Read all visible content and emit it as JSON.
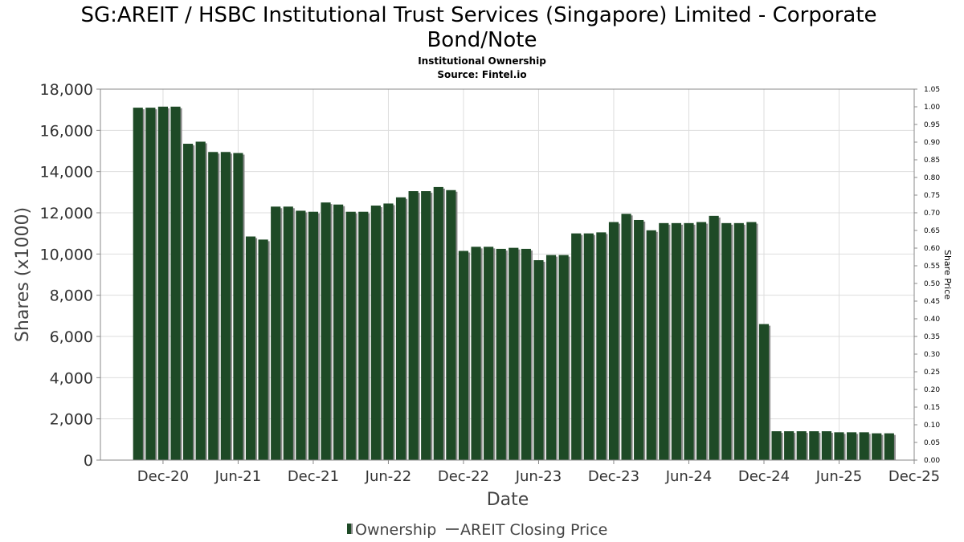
{
  "chart_data": {
    "type": "bar",
    "title": "SG:AREIT / HSBC Institutional Trust Services (Singapore) Limited - Corporate Bond/Note",
    "title_lines": [
      "SG:AREIT / HSBC Institutional Trust Services (Singapore) Limited - Corporate",
      "Bond/Note"
    ],
    "subtitle": "Institutional Ownership",
    "source": "Source: Fintel.io",
    "xlabel": "Date",
    "ylabel": "Shares (x1000)",
    "y2label": "Share Price",
    "ylim": [
      0,
      18000
    ],
    "y2lim": [
      0,
      1.05
    ],
    "yticks": [
      "0",
      "2,000",
      "4,000",
      "6,000",
      "8,000",
      "10,000",
      "12,000",
      "14,000",
      "16,000",
      "18,000"
    ],
    "y2ticks": [
      "0.00",
      "0.05",
      "0.10",
      "0.15",
      "0.20",
      "0.25",
      "0.30",
      "0.35",
      "0.40",
      "0.45",
      "0.50",
      "0.55",
      "0.60",
      "0.65",
      "0.70",
      "0.75",
      "0.80",
      "0.85",
      "0.90",
      "0.95",
      "1.00",
      "1.05"
    ],
    "xticks": [
      "Dec-20",
      "Jun-21",
      "Dec-21",
      "Jun-22",
      "Dec-22",
      "Jun-23",
      "Dec-23",
      "Jun-24",
      "Dec-24",
      "Jun-25",
      "Dec-25"
    ],
    "x_range": [
      "2020-07",
      "2025-12"
    ],
    "grid": true,
    "legend_position": "bottom",
    "series": [
      {
        "name": "Ownership",
        "color": "#1e4a26",
        "points": [
          [
            "2020-10",
            17100
          ],
          [
            "2020-11",
            17100
          ],
          [
            "2020-12",
            17150
          ],
          [
            "2021-01",
            17150
          ],
          [
            "2021-02",
            15350
          ],
          [
            "2021-03",
            15450
          ],
          [
            "2021-04",
            14950
          ],
          [
            "2021-05",
            14950
          ],
          [
            "2021-06",
            14900
          ],
          [
            "2021-07",
            10850
          ],
          [
            "2021-08",
            10700
          ],
          [
            "2021-09",
            12300
          ],
          [
            "2021-10",
            12300
          ],
          [
            "2021-11",
            12100
          ],
          [
            "2021-12",
            12050
          ],
          [
            "2022-01",
            12500
          ],
          [
            "2022-02",
            12400
          ],
          [
            "2022-03",
            12050
          ],
          [
            "2022-04",
            12050
          ],
          [
            "2022-05",
            12350
          ],
          [
            "2022-06",
            12450
          ],
          [
            "2022-07",
            12750
          ],
          [
            "2022-08",
            13050
          ],
          [
            "2022-09",
            13050
          ],
          [
            "2022-10",
            13250
          ],
          [
            "2022-11",
            13100
          ],
          [
            "2022-12",
            10150
          ],
          [
            "2023-01",
            10350
          ],
          [
            "2023-02",
            10350
          ],
          [
            "2023-03",
            10250
          ],
          [
            "2023-04",
            10300
          ],
          [
            "2023-05",
            10250
          ],
          [
            "2023-06",
            9700
          ],
          [
            "2023-07",
            9950
          ],
          [
            "2023-08",
            9950
          ],
          [
            "2023-09",
            11000
          ],
          [
            "2023-10",
            11000
          ],
          [
            "2023-11",
            11050
          ],
          [
            "2023-12",
            11550
          ],
          [
            "2024-01",
            11950
          ],
          [
            "2024-02",
            11650
          ],
          [
            "2024-03",
            11150
          ],
          [
            "2024-04",
            11500
          ],
          [
            "2024-05",
            11500
          ],
          [
            "2024-06",
            11500
          ],
          [
            "2024-07",
            11550
          ],
          [
            "2024-08",
            11850
          ],
          [
            "2024-09",
            11500
          ],
          [
            "2024-10",
            11500
          ],
          [
            "2024-11",
            11550
          ],
          [
            "2024-12",
            6600
          ],
          [
            "2025-01",
            1400
          ],
          [
            "2025-02",
            1400
          ],
          [
            "2025-03",
            1400
          ],
          [
            "2025-04",
            1400
          ],
          [
            "2025-05",
            1400
          ],
          [
            "2025-06",
            1350
          ],
          [
            "2025-07",
            1350
          ],
          [
            "2025-08",
            1350
          ],
          [
            "2025-09",
            1300
          ],
          [
            "2025-10",
            1300
          ]
        ]
      },
      {
        "name": "AREIT Closing Price",
        "color": "#666666",
        "points": []
      }
    ]
  }
}
